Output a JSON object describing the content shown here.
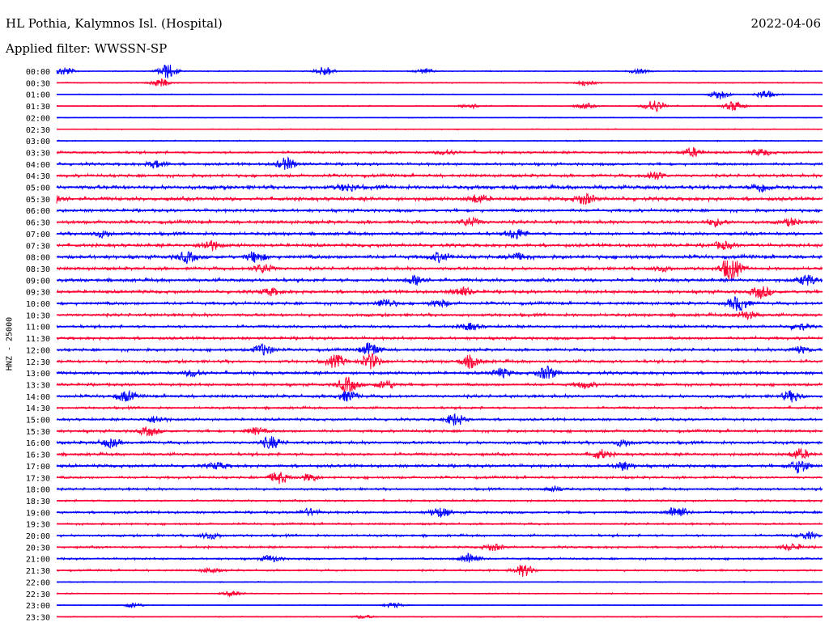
{
  "header": {
    "station": "HL Pothia, Kalymnos Isl. (Hospital)",
    "date": "2022-04-06",
    "filter": "Applied filter: WWSSN-SP"
  },
  "colors": {
    "trace_a": "#0000ff",
    "trace_b": "#ff0033",
    "background": "#ffffff"
  },
  "chart_data": {
    "type": "line",
    "title": "HL Pothia, Kalymnos Isl. (Hospital)",
    "ylabel": "HNZ - 25000",
    "xlabel": "",
    "row_interval_minutes": 30,
    "rows": [
      "00:00",
      "00:30",
      "01:00",
      "01:30",
      "02:00",
      "02:30",
      "03:00",
      "03:30",
      "04:00",
      "04:30",
      "05:00",
      "05:30",
      "06:00",
      "06:30",
      "07:00",
      "07:30",
      "08:00",
      "08:30",
      "09:00",
      "09:30",
      "10:00",
      "10:30",
      "11:00",
      "11:30",
      "12:00",
      "12:30",
      "13:00",
      "13:30",
      "14:00",
      "14:30",
      "15:00",
      "15:30",
      "16:00",
      "16:30",
      "17:00",
      "17:30",
      "18:00",
      "18:30",
      "19:00",
      "19:30",
      "20:00",
      "20:30",
      "21:00",
      "21:30",
      "22:00",
      "22:30",
      "23:00",
      "23:30"
    ],
    "series": [
      {
        "color": "#0000ff",
        "rows_parity": "even"
      },
      {
        "color": "#ff0033",
        "rows_parity": "odd"
      }
    ],
    "noise_level": [
      0.6,
      0.7,
      0.5,
      0.7,
      0.5,
      0.6,
      0.7,
      1.4,
      1.6,
      1.8,
      2.4,
      2.2,
      1.8,
      2.0,
      1.9,
      2.0,
      2.2,
      1.9,
      2.0,
      1.9,
      1.8,
      1.8,
      1.6,
      1.7,
      1.7,
      1.8,
      1.8,
      1.6,
      1.8,
      1.4,
      1.5,
      1.6,
      1.8,
      1.7,
      1.8,
      1.5,
      1.4,
      1.2,
      1.4,
      1.2,
      1.4,
      1.3,
      1.2,
      1.1,
      0.6,
      0.7,
      0.5,
      0.6
    ],
    "events": [
      {
        "row": "00:00",
        "x": 0.01,
        "amp": 5
      },
      {
        "row": "00:00",
        "x": 0.145,
        "amp": 9
      },
      {
        "row": "00:00",
        "x": 0.35,
        "amp": 6
      },
      {
        "row": "00:00",
        "x": 0.48,
        "amp": 3
      },
      {
        "row": "00:00",
        "x": 0.76,
        "amp": 3
      },
      {
        "row": "00:30",
        "x": 0.135,
        "amp": 5
      },
      {
        "row": "00:30",
        "x": 0.69,
        "amp": 3
      },
      {
        "row": "01:00",
        "x": 0.865,
        "amp": 6
      },
      {
        "row": "01:00",
        "x": 0.925,
        "amp": 5
      },
      {
        "row": "01:30",
        "x": 0.78,
        "amp": 8
      },
      {
        "row": "01:30",
        "x": 0.885,
        "amp": 6
      },
      {
        "row": "01:30",
        "x": 0.69,
        "amp": 3
      },
      {
        "row": "01:30",
        "x": 0.54,
        "amp": 3
      },
      {
        "row": "03:30",
        "x": 0.83,
        "amp": 5
      },
      {
        "row": "03:30",
        "x": 0.51,
        "amp": 3
      },
      {
        "row": "03:30",
        "x": 0.92,
        "amp": 4
      },
      {
        "row": "04:00",
        "x": 0.3,
        "amp": 7
      },
      {
        "row": "04:00",
        "x": 0.13,
        "amp": 4
      },
      {
        "row": "04:30",
        "x": 0.78,
        "amp": 5
      },
      {
        "row": "05:00",
        "x": 0.92,
        "amp": 5
      },
      {
        "row": "05:00",
        "x": 0.38,
        "amp": 4
      },
      {
        "row": "05:30",
        "x": 0.0,
        "amp": 5
      },
      {
        "row": "05:30",
        "x": 0.55,
        "amp": 5
      },
      {
        "row": "05:30",
        "x": 0.69,
        "amp": 6
      },
      {
        "row": "06:30",
        "x": 0.54,
        "amp": 5
      },
      {
        "row": "06:30",
        "x": 0.96,
        "amp": 4
      },
      {
        "row": "06:30",
        "x": 0.86,
        "amp": 4
      },
      {
        "row": "07:00",
        "x": 0.6,
        "amp": 6
      },
      {
        "row": "07:00",
        "x": 0.06,
        "amp": 4
      },
      {
        "row": "07:30",
        "x": 0.2,
        "amp": 6
      },
      {
        "row": "07:30",
        "x": 0.87,
        "amp": 4
      },
      {
        "row": "08:00",
        "x": 0.17,
        "amp": 6
      },
      {
        "row": "08:00",
        "x": 0.26,
        "amp": 6
      },
      {
        "row": "08:00",
        "x": 0.6,
        "amp": 4
      },
      {
        "row": "08:00",
        "x": 0.5,
        "amp": 5
      },
      {
        "row": "08:30",
        "x": 0.88,
        "amp": 14
      },
      {
        "row": "08:30",
        "x": 0.27,
        "amp": 5
      },
      {
        "row": "08:30",
        "x": 0.79,
        "amp": 3
      },
      {
        "row": "09:00",
        "x": 0.47,
        "amp": 6
      },
      {
        "row": "09:00",
        "x": 0.98,
        "amp": 6
      },
      {
        "row": "09:30",
        "x": 0.92,
        "amp": 7
      },
      {
        "row": "09:30",
        "x": 0.53,
        "amp": 5
      },
      {
        "row": "09:30",
        "x": 0.28,
        "amp": 4
      },
      {
        "row": "10:00",
        "x": 0.89,
        "amp": 9
      },
      {
        "row": "10:00",
        "x": 0.43,
        "amp": 5
      },
      {
        "row": "10:00",
        "x": 0.5,
        "amp": 4
      },
      {
        "row": "10:30",
        "x": 0.9,
        "amp": 5
      },
      {
        "row": "11:00",
        "x": 0.54,
        "amp": 4
      },
      {
        "row": "11:00",
        "x": 0.97,
        "amp": 4
      },
      {
        "row": "12:00",
        "x": 0.27,
        "amp": 7
      },
      {
        "row": "12:00",
        "x": 0.41,
        "amp": 8
      },
      {
        "row": "12:00",
        "x": 0.97,
        "amp": 4
      },
      {
        "row": "12:30",
        "x": 0.41,
        "amp": 9
      },
      {
        "row": "12:30",
        "x": 0.365,
        "amp": 7
      },
      {
        "row": "12:30",
        "x": 0.54,
        "amp": 7
      },
      {
        "row": "13:00",
        "x": 0.64,
        "amp": 8
      },
      {
        "row": "13:00",
        "x": 0.58,
        "amp": 5
      },
      {
        "row": "13:00",
        "x": 0.18,
        "amp": 4
      },
      {
        "row": "13:30",
        "x": 0.38,
        "amp": 9
      },
      {
        "row": "13:30",
        "x": 0.43,
        "amp": 5
      },
      {
        "row": "13:30",
        "x": 0.69,
        "amp": 4
      },
      {
        "row": "14:00",
        "x": 0.09,
        "amp": 6
      },
      {
        "row": "14:00",
        "x": 0.96,
        "amp": 6
      },
      {
        "row": "14:00",
        "x": 0.38,
        "amp": 6
      },
      {
        "row": "15:00",
        "x": 0.52,
        "amp": 7
      },
      {
        "row": "15:00",
        "x": 0.13,
        "amp": 4
      },
      {
        "row": "15:30",
        "x": 0.12,
        "amp": 5
      },
      {
        "row": "15:30",
        "x": 0.26,
        "amp": 4
      },
      {
        "row": "16:00",
        "x": 0.28,
        "amp": 7
      },
      {
        "row": "16:00",
        "x": 0.07,
        "amp": 5
      },
      {
        "row": "16:00",
        "x": 0.74,
        "amp": 4
      },
      {
        "row": "16:30",
        "x": 0.71,
        "amp": 5
      },
      {
        "row": "16:30",
        "x": 0.97,
        "amp": 6
      },
      {
        "row": "17:00",
        "x": 0.97,
        "amp": 8
      },
      {
        "row": "17:00",
        "x": 0.74,
        "amp": 5
      },
      {
        "row": "17:00",
        "x": 0.21,
        "amp": 4
      },
      {
        "row": "17:30",
        "x": 0.29,
        "amp": 7
      },
      {
        "row": "17:30",
        "x": 0.33,
        "amp": 4
      },
      {
        "row": "18:00",
        "x": 0.65,
        "amp": 3
      },
      {
        "row": "19:00",
        "x": 0.81,
        "amp": 8
      },
      {
        "row": "19:00",
        "x": 0.5,
        "amp": 6
      },
      {
        "row": "19:00",
        "x": 0.33,
        "amp": 4
      },
      {
        "row": "20:00",
        "x": 0.2,
        "amp": 4
      },
      {
        "row": "20:00",
        "x": 0.98,
        "amp": 4
      },
      {
        "row": "20:30",
        "x": 0.57,
        "amp": 4
      },
      {
        "row": "20:30",
        "x": 0.96,
        "amp": 4
      },
      {
        "row": "21:00",
        "x": 0.54,
        "amp": 7
      },
      {
        "row": "21:00",
        "x": 0.28,
        "amp": 4
      },
      {
        "row": "21:30",
        "x": 0.61,
        "amp": 7
      },
      {
        "row": "21:30",
        "x": 0.2,
        "amp": 3
      },
      {
        "row": "22:30",
        "x": 0.23,
        "amp": 3
      },
      {
        "row": "23:00",
        "x": 0.1,
        "amp": 3
      },
      {
        "row": "23:00",
        "x": 0.44,
        "amp": 3
      },
      {
        "row": "23:30",
        "x": 0.4,
        "amp": 2
      }
    ]
  }
}
